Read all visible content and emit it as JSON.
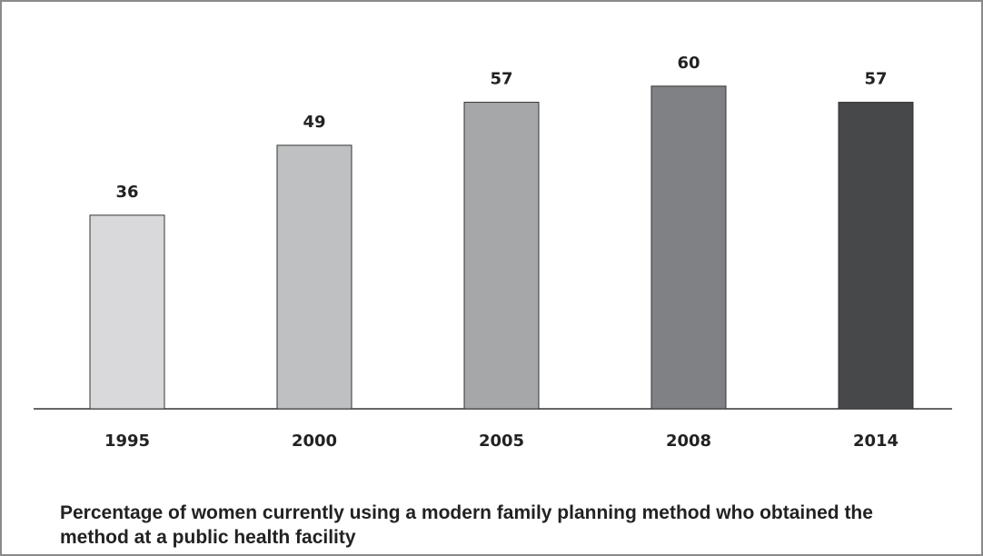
{
  "chart_data": {
    "type": "bar",
    "title": "Percentage of women currently using a modern family planning method who obtained the method at a public health facility",
    "categories": [
      "1995",
      "2000",
      "2005",
      "2008",
      "2014"
    ],
    "values": [
      36,
      49,
      57,
      60,
      57
    ],
    "colors": [
      "#d9d9db",
      "#bfc0c2",
      "#a6a7a9",
      "#808184",
      "#47484a"
    ]
  }
}
